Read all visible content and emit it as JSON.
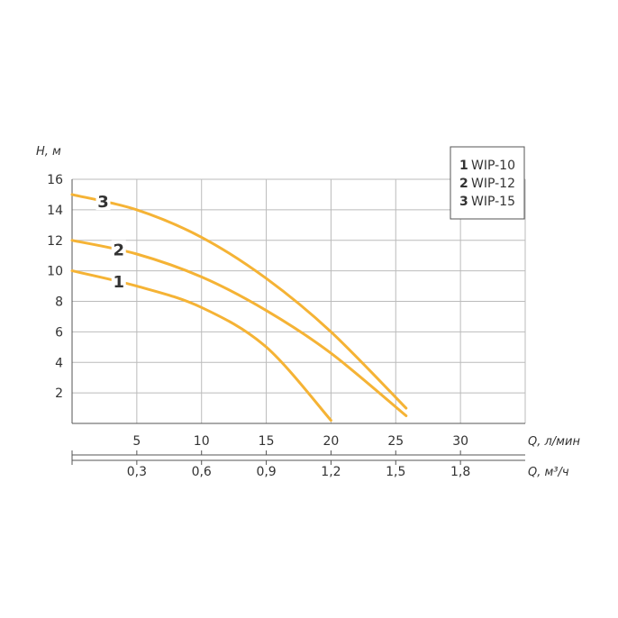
{
  "chart_data": {
    "type": "line",
    "ylabel": "H, м",
    "xlabel": "Q, л/мин",
    "x2label": "Q, м³/ч",
    "xlim": [
      0,
      35
    ],
    "ylim": [
      0,
      16
    ],
    "yticks": [
      2,
      4,
      6,
      8,
      10,
      12,
      14,
      16
    ],
    "xticks": [
      5,
      10,
      15,
      20,
      25,
      30
    ],
    "x_tick_labels": [
      "5",
      "10",
      "15",
      "20",
      "25",
      "30"
    ],
    "x2ticks_lmin": [
      5,
      10,
      15,
      20,
      25,
      30
    ],
    "x2_tick_labels": [
      "0,3",
      "0,6",
      "0,9",
      "1,2",
      "1,5",
      "1,8"
    ],
    "grid": true,
    "legend_position": "top-right",
    "series": [
      {
        "name": "WIP-10",
        "label": "1",
        "x": [
          0,
          5,
          10,
          15,
          20
        ],
        "y": [
          10,
          9,
          7.6,
          5,
          0.2
        ]
      },
      {
        "name": "WIP-12",
        "label": "2",
        "x": [
          0,
          5,
          10,
          15,
          20,
          25.8
        ],
        "y": [
          12,
          11.1,
          9.6,
          7.4,
          4.6,
          0.5
        ]
      },
      {
        "name": "WIP-15",
        "label": "3",
        "x": [
          0,
          5,
          10,
          15,
          20,
          25.8
        ],
        "y": [
          15,
          14,
          12.2,
          9.5,
          6,
          1
        ]
      }
    ],
    "legend": [
      {
        "num": "1",
        "name": "WIP-10"
      },
      {
        "num": "2",
        "name": "WIP-12"
      },
      {
        "num": "3",
        "name": "WIP-15"
      }
    ],
    "colors": {
      "curve": "#f5b335",
      "label": "#f5a623",
      "grid": "#bbbbbb",
      "axis": "#555555",
      "text": "#333333"
    }
  }
}
